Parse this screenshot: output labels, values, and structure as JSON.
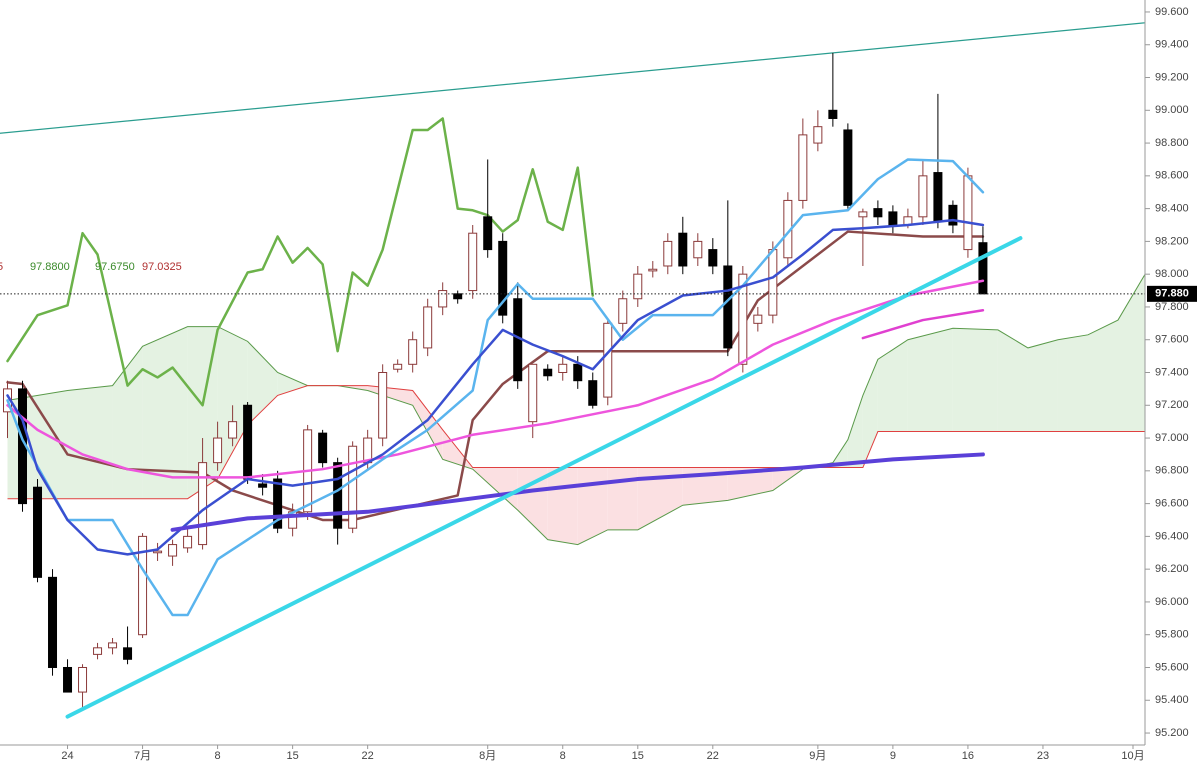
{
  "chart_data": {
    "type": "candlestick",
    "ylim": [
      95.127,
      99.673
    ],
    "xlim": [
      -0.5,
      75.8
    ],
    "yticks": [
      {
        "value": 95.2,
        "label": "95.200"
      },
      {
        "value": 95.4,
        "label": "95.400"
      },
      {
        "value": 95.6,
        "label": "95.600"
      },
      {
        "value": 95.8,
        "label": "95.800"
      },
      {
        "value": 96.0,
        "label": "96.000"
      },
      {
        "value": 96.2,
        "label": "96.200"
      },
      {
        "value": 96.4,
        "label": "96.400"
      },
      {
        "value": 96.6,
        "label": "96.600"
      },
      {
        "value": 96.8,
        "label": "96.800"
      },
      {
        "value": 97.0,
        "label": "97.000"
      },
      {
        "value": 97.2,
        "label": "97.200"
      },
      {
        "value": 97.4,
        "label": "97.400"
      },
      {
        "value": 97.6,
        "label": "97.600"
      },
      {
        "value": 97.8,
        "label": "97.800"
      },
      {
        "value": 98.0,
        "label": "98.000"
      },
      {
        "value": 98.2,
        "label": "98.200"
      },
      {
        "value": 98.4,
        "label": "98.400"
      },
      {
        "value": 98.6,
        "label": "98.600"
      },
      {
        "value": 98.8,
        "label": "98.800"
      },
      {
        "value": 99.0,
        "label": "99.000"
      },
      {
        "value": 99.2,
        "label": "99.200"
      },
      {
        "value": 99.4,
        "label": "99.400"
      },
      {
        "value": 99.6,
        "label": "99.600"
      }
    ],
    "xticks": [
      {
        "value": 4,
        "label": "24"
      },
      {
        "value": 9,
        "label": "7月"
      },
      {
        "value": 14,
        "label": "8"
      },
      {
        "value": 19,
        "label": "15"
      },
      {
        "value": 24,
        "label": "22"
      },
      {
        "value": 32,
        "label": "8月"
      },
      {
        "value": 37,
        "label": "8"
      },
      {
        "value": 42,
        "label": "15"
      },
      {
        "value": 47,
        "label": "22"
      },
      {
        "value": 54,
        "label": "9月"
      },
      {
        "value": 59,
        "label": "9"
      },
      {
        "value": 64,
        "label": "16"
      },
      {
        "value": 69,
        "label": "23"
      },
      {
        "value": 75,
        "label": "10月"
      }
    ],
    "up_color": "#8b3a3a",
    "down_color": "#000000",
    "open": [
      97.16,
      97.3,
      96.7,
      96.15,
      95.6,
      95.45,
      95.68,
      95.72,
      95.72,
      95.8,
      96.3,
      96.28,
      96.33,
      96.35,
      96.85,
      97.0,
      97.2,
      96.72,
      96.75,
      96.45,
      96.55,
      97.03,
      96.85,
      96.45,
      96.85,
      97.0,
      97.42,
      97.45,
      97.55,
      97.8,
      97.88,
      97.9,
      98.35,
      98.2,
      97.85,
      97.1,
      97.42,
      97.4,
      97.45,
      97.35,
      97.25,
      97.7,
      97.85,
      98.02,
      98.05,
      98.25,
      98.1,
      98.15,
      98.05,
      97.45,
      97.7,
      97.75,
      98.1,
      98.45,
      98.8,
      99.0,
      98.88,
      98.35,
      98.4,
      98.38,
      98.3,
      98.35,
      98.62,
      98.42,
      98.15,
      98.192
    ],
    "high": [
      97.35,
      97.35,
      96.75,
      96.2,
      95.65,
      95.62,
      95.75,
      95.78,
      95.85,
      96.42,
      96.36,
      96.38,
      96.45,
      97.0,
      97.1,
      97.2,
      97.22,
      96.78,
      96.8,
      96.6,
      97.08,
      97.05,
      96.88,
      96.98,
      97.05,
      97.45,
      97.48,
      97.65,
      97.85,
      97.95,
      97.9,
      98.3,
      98.7,
      98.25,
      97.95,
      97.45,
      97.45,
      97.5,
      97.5,
      97.4,
      97.72,
      97.9,
      98.05,
      98.08,
      98.25,
      98.35,
      98.25,
      98.22,
      98.45,
      98.05,
      97.8,
      98.2,
      98.5,
      98.95,
      99.0,
      99.35,
      98.92,
      98.4,
      98.45,
      98.42,
      98.4,
      98.7,
      99.1,
      98.45,
      98.65,
      98.292
    ],
    "low": [
      97.0,
      96.55,
      96.12,
      95.55,
      95.45,
      95.35,
      95.65,
      95.68,
      95.62,
      95.78,
      96.25,
      96.22,
      96.3,
      96.32,
      96.8,
      96.95,
      96.72,
      96.65,
      96.42,
      96.4,
      96.5,
      96.82,
      96.35,
      96.42,
      96.8,
      96.95,
      97.4,
      97.4,
      97.5,
      97.75,
      97.82,
      97.85,
      98.1,
      97.7,
      97.3,
      97.0,
      97.35,
      97.35,
      97.3,
      97.18,
      97.2,
      97.65,
      97.8,
      97.98,
      98.0,
      98.0,
      98.05,
      98.0,
      97.5,
      97.4,
      97.65,
      97.7,
      98.05,
      98.4,
      98.75,
      98.9,
      98.4,
      98.05,
      98.3,
      98.25,
      98.28,
      98.3,
      98.28,
      98.25,
      98.1,
      97.88
    ],
    "close": [
      97.3,
      96.6,
      96.15,
      95.6,
      95.45,
      95.6,
      95.72,
      95.75,
      95.65,
      96.4,
      96.31,
      96.35,
      96.4,
      96.85,
      97.0,
      97.1,
      96.75,
      96.7,
      96.45,
      96.55,
      97.05,
      96.85,
      96.45,
      96.95,
      97.0,
      97.4,
      97.45,
      97.6,
      97.8,
      97.9,
      97.85,
      98.25,
      98.15,
      97.75,
      97.35,
      97.45,
      97.38,
      97.45,
      97.35,
      97.2,
      97.7,
      97.85,
      98.0,
      98.03,
      98.2,
      98.05,
      98.2,
      98.05,
      97.55,
      98.0,
      97.75,
      98.15,
      98.45,
      98.85,
      98.9,
      98.95,
      98.42,
      98.38,
      98.35,
      98.3,
      98.35,
      98.6,
      98.32,
      98.3,
      98.6,
      97.88
    ],
    "cloud": {
      "x": [
        0,
        4,
        7,
        9,
        12,
        14,
        16,
        18,
        20,
        22,
        24,
        27,
        29,
        31,
        34,
        36,
        38,
        40,
        42,
        45,
        48,
        51,
        53,
        55,
        56,
        57,
        58,
        60,
        63,
        66,
        68,
        70,
        72,
        74,
        76
      ],
      "span_a": [
        97.23,
        97.29,
        97.32,
        97.56,
        97.68,
        97.68,
        97.59,
        97.4,
        97.32,
        97.32,
        97.29,
        97.2,
        96.87,
        96.81,
        96.56,
        96.38,
        96.35,
        96.44,
        96.44,
        96.59,
        96.62,
        96.68,
        96.81,
        96.85,
        96.99,
        97.26,
        97.48,
        97.6,
        97.67,
        97.66,
        97.55,
        97.6,
        97.63,
        97.72,
        98.03
      ],
      "span_b": [
        96.63,
        96.63,
        96.63,
        96.63,
        96.63,
        96.75,
        97.08,
        97.26,
        97.32,
        97.32,
        97.32,
        97.29,
        97.05,
        96.82,
        96.82,
        96.82,
        96.82,
        96.82,
        96.82,
        96.82,
        96.82,
        96.82,
        96.82,
        96.82,
        96.82,
        96.82,
        97.04,
        97.04,
        97.04,
        97.04,
        97.04,
        97.04,
        97.04,
        97.04,
        97.04
      ],
      "a_color": "#5a9a4a",
      "b_color": "#e04040",
      "up_fill": "#e4f2e2",
      "down_fill": "#fbe0e2"
    },
    "series": [
      {
        "color": "#6cb24a",
        "width": 2.5,
        "x": [
          0,
          2,
          4,
          5,
          6,
          8,
          9,
          10,
          11,
          13,
          14,
          16,
          17,
          18,
          19,
          20,
          21,
          22,
          23,
          24,
          25,
          27,
          28,
          29,
          30,
          31,
          32,
          33,
          34,
          35,
          36,
          37,
          38,
          39
        ],
        "values": [
          97.47,
          97.75,
          97.81,
          98.25,
          98.12,
          97.32,
          97.42,
          97.37,
          97.43,
          97.2,
          97.66,
          98.01,
          98.03,
          98.23,
          98.07,
          98.16,
          98.06,
          97.53,
          98.01,
          97.93,
          98.15,
          98.88,
          98.88,
          98.95,
          98.4,
          98.39,
          98.36,
          98.26,
          98.33,
          98.64,
          98.32,
          98.27,
          98.65,
          97.87
        ]
      },
      {
        "color": "#8b4a4a",
        "width": 2.5,
        "x": [
          0,
          1,
          4,
          8,
          13,
          15,
          21,
          23,
          30,
          31,
          33,
          36,
          40,
          48,
          50,
          56,
          61,
          65
        ],
        "values": [
          97.34,
          97.33,
          96.9,
          96.81,
          96.79,
          96.68,
          96.5,
          96.5,
          96.65,
          97.11,
          97.33,
          97.53,
          97.53,
          97.53,
          97.84,
          98.26,
          98.23,
          98.23
        ]
      },
      {
        "color": "#ee55dd",
        "width": 2.5,
        "x": [
          0,
          2,
          5,
          8,
          11,
          16,
          21,
          26,
          31,
          36,
          42,
          47,
          51,
          55,
          60,
          65
        ],
        "values": [
          97.2,
          97.05,
          96.9,
          96.81,
          96.76,
          96.76,
          96.81,
          96.9,
          97.02,
          97.09,
          97.2,
          97.36,
          97.57,
          97.72,
          97.87,
          97.96
        ]
      },
      {
        "color": "#e040d0",
        "width": 2.5,
        "x": [
          57,
          61,
          65
        ],
        "values": [
          97.61,
          97.72,
          97.78
        ]
      },
      {
        "color": "#5ab4ee",
        "width": 2.5,
        "x": [
          0,
          1,
          4,
          7,
          9,
          11,
          12,
          14,
          16,
          18,
          22,
          25,
          28,
          31,
          32,
          34,
          35,
          39,
          41,
          43,
          47,
          49,
          53,
          56,
          58,
          60,
          63,
          65
        ],
        "values": [
          97.23,
          96.99,
          96.5,
          96.5,
          96.2,
          95.92,
          95.92,
          96.26,
          96.38,
          96.5,
          96.68,
          96.87,
          97.05,
          97.29,
          97.72,
          97.94,
          97.85,
          97.85,
          97.6,
          97.75,
          97.75,
          97.93,
          98.36,
          98.39,
          98.58,
          98.7,
          98.69,
          98.5
        ]
      },
      {
        "color": "#3a4fd0",
        "width": 2.5,
        "x": [
          0,
          1,
          2,
          4,
          6,
          8,
          10,
          13,
          16,
          19,
          22,
          25,
          28,
          31,
          33,
          35,
          37,
          39,
          42,
          45,
          48,
          51,
          53,
          55,
          57,
          60,
          63,
          65
        ],
        "values": [
          97.26,
          97.11,
          96.81,
          96.5,
          96.32,
          96.29,
          96.32,
          96.56,
          96.75,
          96.71,
          96.75,
          96.9,
          97.11,
          97.45,
          97.66,
          97.57,
          97.5,
          97.42,
          97.72,
          97.87,
          97.9,
          97.98,
          98.12,
          98.27,
          98.28,
          98.3,
          98.33,
          98.3
        ]
      },
      {
        "color": "#5a40d8",
        "width": 4,
        "x": [
          11,
          16,
          24,
          30,
          35,
          42,
          47,
          53,
          59,
          65
        ],
        "values": [
          96.44,
          96.51,
          96.55,
          96.62,
          96.68,
          96.75,
          96.78,
          96.82,
          96.87,
          96.9
        ]
      }
    ],
    "trendlines": [
      {
        "color": "#2a9d8f",
        "width": 1.2,
        "x": [
          -0.5,
          76.5
        ],
        "values": [
          98.86,
          99.54
        ]
      },
      {
        "color": "#3ad7e8",
        "width": 4,
        "x": [
          4,
          67.5
        ],
        "values": [
          95.3,
          98.22
        ]
      }
    ],
    "last": {
      "value": 97.88,
      "label": "97.880"
    },
    "indicator_values": [
      {
        "text": "5",
        "color": "#b03030"
      },
      {
        "text": "97.8800",
        "color": "#3a8a2a"
      },
      {
        "text": "97.6750",
        "color": "#3a8a2a"
      },
      {
        "text": "97.0325",
        "color": "#b03030"
      }
    ]
  }
}
